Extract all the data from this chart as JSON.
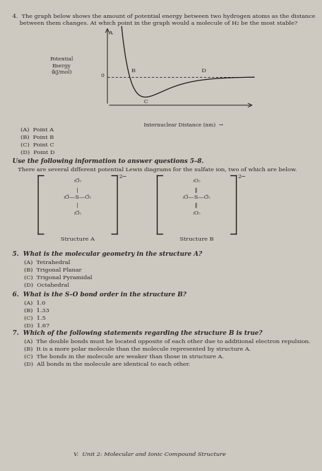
{
  "bg_color": "#cdc9c1",
  "text_color": "#2a2520",
  "dark_color": "#1a1510",
  "q4_line1": "4.  The graph below shows the amount of potential energy between two hydrogen atoms as the distance",
  "q4_line2": "    between them changes. At which point in the graph would a molecule of H₂ be the most stable?",
  "graph_ylabel_lines": [
    "Potential",
    "Energy",
    "(kJ/mol)"
  ],
  "graph_xlabel": "Internuclear Distance (nm)",
  "q4_choices": [
    "(A)  Point A",
    "(B)  Point B",
    "(C)  Point C",
    "(D)  Point D"
  ],
  "section_header": "Use the following information to answer questions 5–8.",
  "section_text": "There are several different potential Lewis diagrams for the sulfate ion, two of which are below.",
  "structure_a_label": "Structure A",
  "structure_b_label": "Structure B",
  "q5_header": "5.  What is the molecular geometry in the structure A?",
  "q5_choices": [
    "(A)  Tetrahedral",
    "(B)  Trigonal Planar",
    "(C)  Trigonal Pyramidal",
    "(D)  Octahedral"
  ],
  "q6_header": "6.  What is the S–O bond order in the structure B?",
  "q6_choices": [
    "(A)  1.0",
    "(B)  1.33",
    "(C)  1.5",
    "(D)  1.67"
  ],
  "q7_header": "7.  Which of the following statements regarding the structure B is true?",
  "q7_choices": [
    "(A)  The double bonds must be located opposite of each other due to additional electron repulsion.",
    "(B)  It is a more polar molecule than the molecule represented by structure A.",
    "(C)  The bonds in the molecule are weaker than those in structure A.",
    "(D)  All bonds in the molecule are identical to each other."
  ],
  "footer": "V.  Unit 2: Molecular and Ionic Compound Structure"
}
